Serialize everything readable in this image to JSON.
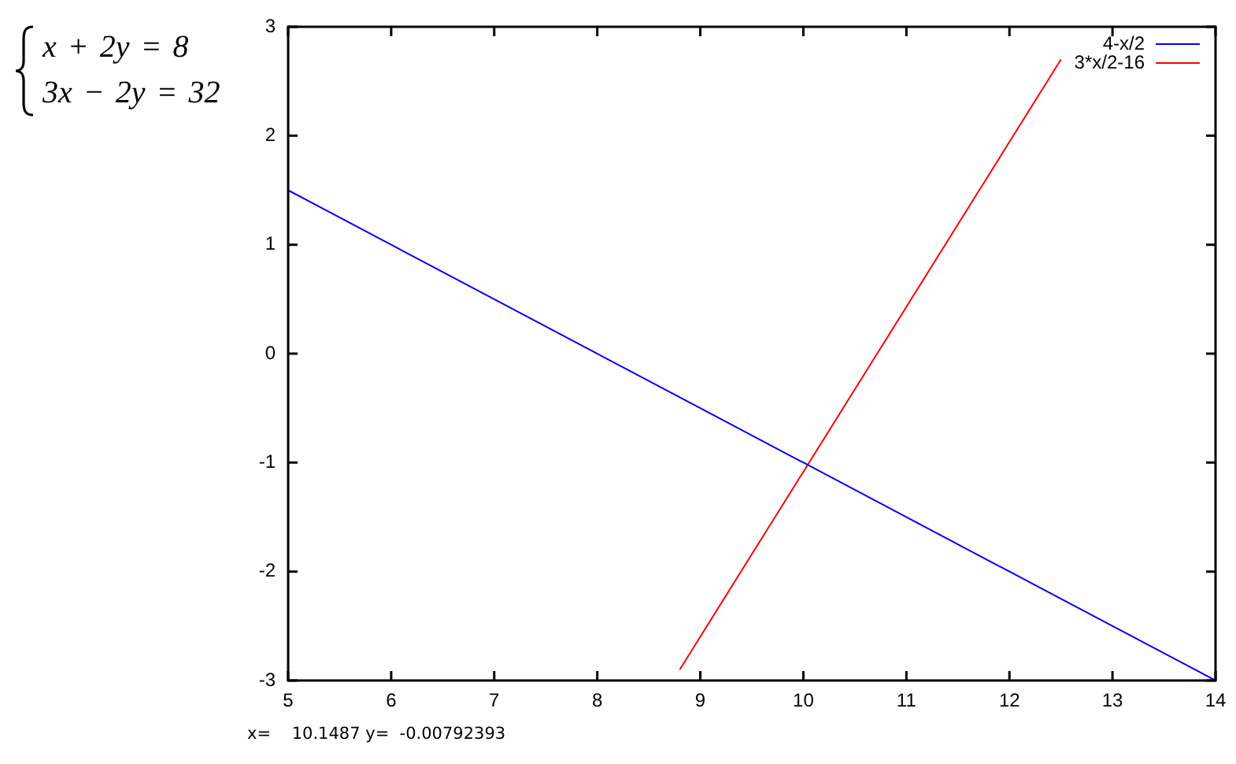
{
  "chart_data": {
    "type": "line",
    "annotations": [
      "x + 2y = 8",
      "3x − 2y = 32",
      "x=    10.1487 y=  -0.00792393"
    ],
    "xlim": [
      5,
      14
    ],
    "xticks": [
      5,
      6,
      7,
      8,
      9,
      10,
      11,
      12,
      13,
      14
    ],
    "ylim": [
      -3,
      3
    ],
    "yticks": [
      -3,
      -2,
      -1,
      0,
      1,
      2,
      3
    ],
    "legend": "top right",
    "marker": "none",
    "series": [
      {
        "name": "4-x/2",
        "color": "#0000ff",
        "x": [
          5,
          14
        ],
        "values": [
          1.5,
          -3
        ]
      },
      {
        "name": "3*x/2-16",
        "color": "#ff0000",
        "x": [
          8.8,
          12.5
        ],
        "values": [
          -2.9,
          2.7
        ]
      }
    ]
  }
}
